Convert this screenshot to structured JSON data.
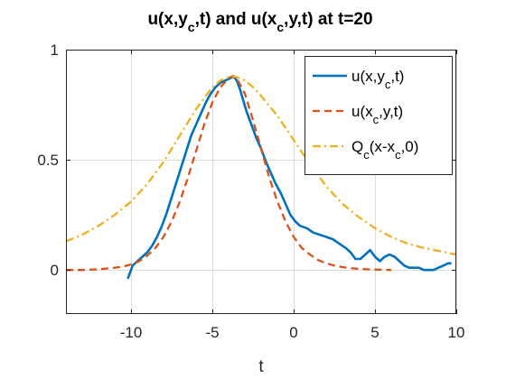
{
  "chart_data": {
    "type": "line",
    "title": "u(x,y_c,t) and u(x_c,y,t) at t=20",
    "xlabel": "t",
    "ylabel": "",
    "xlim": [
      -14,
      10
    ],
    "ylim": [
      -0.2,
      1.0
    ],
    "xticks": [
      -10,
      -5,
      0,
      5,
      10
    ],
    "yticks": [
      0,
      0.5,
      1
    ],
    "xtick_labels": [
      "-10",
      "-5",
      "0",
      "5",
      "10"
    ],
    "ytick_labels": [
      "0",
      "0.5",
      "1"
    ],
    "grid": true,
    "legend_position": "top-right",
    "colors": {
      "series1": "#0072BD",
      "series2": "#D95319",
      "series3": "#EDB120",
      "grid": "#dcdcdc",
      "axis": "#262626"
    },
    "series": [
      {
        "name": "u(x,y_c,t)",
        "style": "solid",
        "x": [
          -10.2,
          -9.9,
          -9.6,
          -9.3,
          -9.0,
          -8.7,
          -8.4,
          -8.1,
          -7.8,
          -7.5,
          -7.2,
          -6.9,
          -6.6,
          -6.3,
          -6.0,
          -5.7,
          -5.4,
          -5.1,
          -4.8,
          -4.5,
          -4.2,
          -3.9,
          -3.7,
          -3.5,
          -3.3,
          -3.1,
          -2.9,
          -2.6,
          -2.3,
          -2.0,
          -1.7,
          -1.4,
          -1.1,
          -0.8,
          -0.5,
          -0.2,
          0.1,
          0.4,
          0.8,
          1.2,
          1.6,
          2.0,
          2.4,
          2.8,
          3.2,
          3.5,
          3.8,
          4.1,
          4.4,
          4.7,
          5.0,
          5.3,
          5.6,
          5.9,
          6.2,
          6.5,
          6.8,
          7.1,
          7.4,
          7.7,
          8.0,
          8.3,
          8.6,
          8.9,
          9.2,
          9.5,
          9.7
        ],
        "y": [
          -0.04,
          0.02,
          0.04,
          0.06,
          0.08,
          0.11,
          0.15,
          0.2,
          0.26,
          0.33,
          0.4,
          0.47,
          0.54,
          0.61,
          0.66,
          0.71,
          0.76,
          0.8,
          0.83,
          0.85,
          0.86,
          0.87,
          0.88,
          0.86,
          0.82,
          0.77,
          0.72,
          0.66,
          0.6,
          0.55,
          0.49,
          0.44,
          0.39,
          0.35,
          0.3,
          0.25,
          0.22,
          0.2,
          0.19,
          0.17,
          0.16,
          0.15,
          0.14,
          0.12,
          0.1,
          0.08,
          0.05,
          0.05,
          0.07,
          0.09,
          0.06,
          0.04,
          0.06,
          0.07,
          0.06,
          0.04,
          0.02,
          0.01,
          0.01,
          0.01,
          0.0,
          0.0,
          0.0,
          0.01,
          0.02,
          0.03,
          0.03
        ]
      },
      {
        "name": "u(x_c,y,t)",
        "style": "dashed",
        "x": [
          -14.0,
          -13.0,
          -12.0,
          -11.0,
          -10.5,
          -10.0,
          -9.5,
          -9.0,
          -8.5,
          -8.0,
          -7.5,
          -7.0,
          -6.5,
          -6.0,
          -5.5,
          -5.0,
          -4.5,
          -4.0,
          -3.75,
          -3.5,
          -3.0,
          -2.5,
          -2.0,
          -1.5,
          -1.0,
          -0.5,
          0.0,
          0.5,
          1.0,
          1.5,
          2.0,
          2.5,
          3.0,
          3.5,
          4.0,
          4.5,
          5.0,
          5.5,
          6.0
        ],
        "y": [
          0.0,
          0.0,
          0.003,
          0.01,
          0.015,
          0.025,
          0.04,
          0.065,
          0.1,
          0.15,
          0.22,
          0.31,
          0.42,
          0.54,
          0.66,
          0.76,
          0.83,
          0.87,
          0.88,
          0.87,
          0.8,
          0.68,
          0.55,
          0.42,
          0.31,
          0.22,
          0.15,
          0.1,
          0.07,
          0.045,
          0.03,
          0.02,
          0.013,
          0.008,
          0.005,
          0.003,
          0.002,
          0.001,
          0.0
        ]
      },
      {
        "name": "Q_c(x-x_c,0)",
        "style": "dashdot",
        "x": [
          -14.0,
          -13.0,
          -12.0,
          -11.0,
          -10.0,
          -9.0,
          -8.0,
          -7.0,
          -6.0,
          -5.0,
          -4.5,
          -4.0,
          -3.75,
          -3.5,
          -3.0,
          -2.5,
          -2.0,
          -1.0,
          0.0,
          1.0,
          2.0,
          3.0,
          4.0,
          5.0,
          6.0,
          7.0,
          8.0,
          9.0,
          10.0
        ],
        "y": [
          0.13,
          0.16,
          0.2,
          0.25,
          0.31,
          0.39,
          0.49,
          0.61,
          0.73,
          0.83,
          0.86,
          0.875,
          0.88,
          0.875,
          0.86,
          0.83,
          0.79,
          0.7,
          0.59,
          0.48,
          0.38,
          0.3,
          0.24,
          0.19,
          0.15,
          0.12,
          0.1,
          0.085,
          0.07
        ]
      }
    ]
  }
}
